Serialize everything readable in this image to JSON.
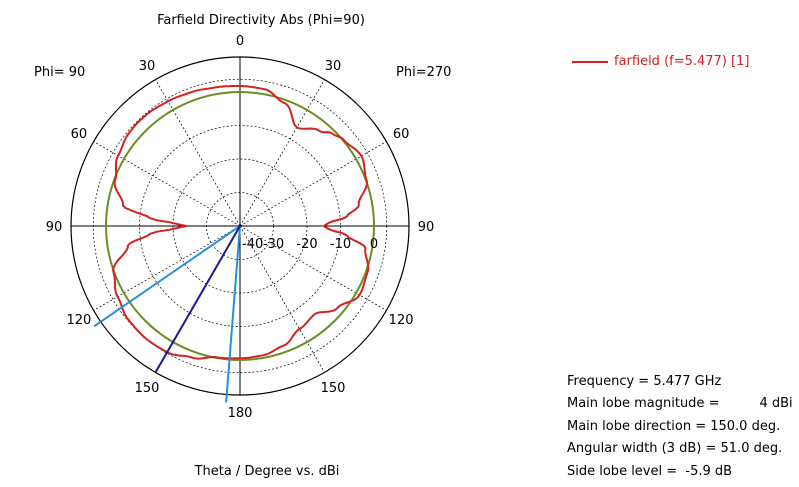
{
  "chart_data": {
    "type": "polar",
    "title": "Farfield Directivity Abs (Phi=90)",
    "xlabel": "Theta / Degree vs. dBi",
    "phi_left_label": "Phi= 90",
    "phi_right_label": "Phi=270",
    "angle_labels": [
      "0",
      "30",
      "60",
      "90",
      "120",
      "150",
      "180",
      "150",
      "120",
      "90",
      "60",
      "30"
    ],
    "radial_labels": [
      "-40",
      "-30",
      "-20",
      "-10",
      "0"
    ],
    "rlim": [
      -40,
      5
    ],
    "grid": true,
    "legend": "top-right",
    "series": [
      {
        "name": "farfield (f=5.477) [1]",
        "theta_deg": [
          -180,
          -170,
          -160,
          -150,
          -140,
          -130,
          -120,
          -110,
          -100,
          -95,
          -92,
          -90,
          -88,
          -85,
          -80,
          -70,
          -60,
          -50,
          -45,
          -40,
          -30,
          -20,
          -10,
          0,
          10,
          20,
          30,
          40,
          45,
          50,
          60,
          70,
          80,
          85,
          88,
          90,
          92,
          95,
          100,
          110,
          120,
          130,
          140,
          150,
          160,
          170,
          180
        ],
        "directivity_dbi": [
          -0.5,
          -0.2,
          1.8,
          3.5,
          3.8,
          3.5,
          2.2,
          0.2,
          -6.0,
          -13.0,
          -21.0,
          -24.0,
          -21.0,
          -13.0,
          -4.5,
          -0.3,
          2.0,
          3.2,
          3.4,
          3.4,
          3.0,
          2.5,
          2.0,
          1.8,
          1.5,
          -1.0,
          -6.0,
          -3.0,
          -1.0,
          0.2,
          1.8,
          0.2,
          -4.0,
          -8.0,
          -13.5,
          -15.0,
          -13.5,
          -8.0,
          -2.0,
          0.5,
          1.2,
          -2.0,
          -5.5,
          -4.5,
          -2.0,
          -0.8,
          -0.5
        ]
      }
    ],
    "reference_level_dbi": 0,
    "main_lobe_direction_deg": 150.0,
    "beamwidth_3db_edges_deg": [
      124.5,
      175.5
    ],
    "info": {
      "frequency": "Frequency = 5.477 GHz",
      "magnitude_key": "Main lobe magnitude =",
      "magnitude_val": "4 dBi",
      "direction": "Main lobe direction = 150.0 deg.",
      "width": "Angular width (3 dB) = 51.0 deg.",
      "sidelobe": "Side lobe level =  -5.9 dB"
    }
  },
  "colors": {
    "pattern": "#d42121",
    "reference_circle": "#6b8e23",
    "main_lobe_line": "#1a1a8a",
    "beamwidth_lines": "#2b8fd8",
    "grid": "#000000"
  }
}
